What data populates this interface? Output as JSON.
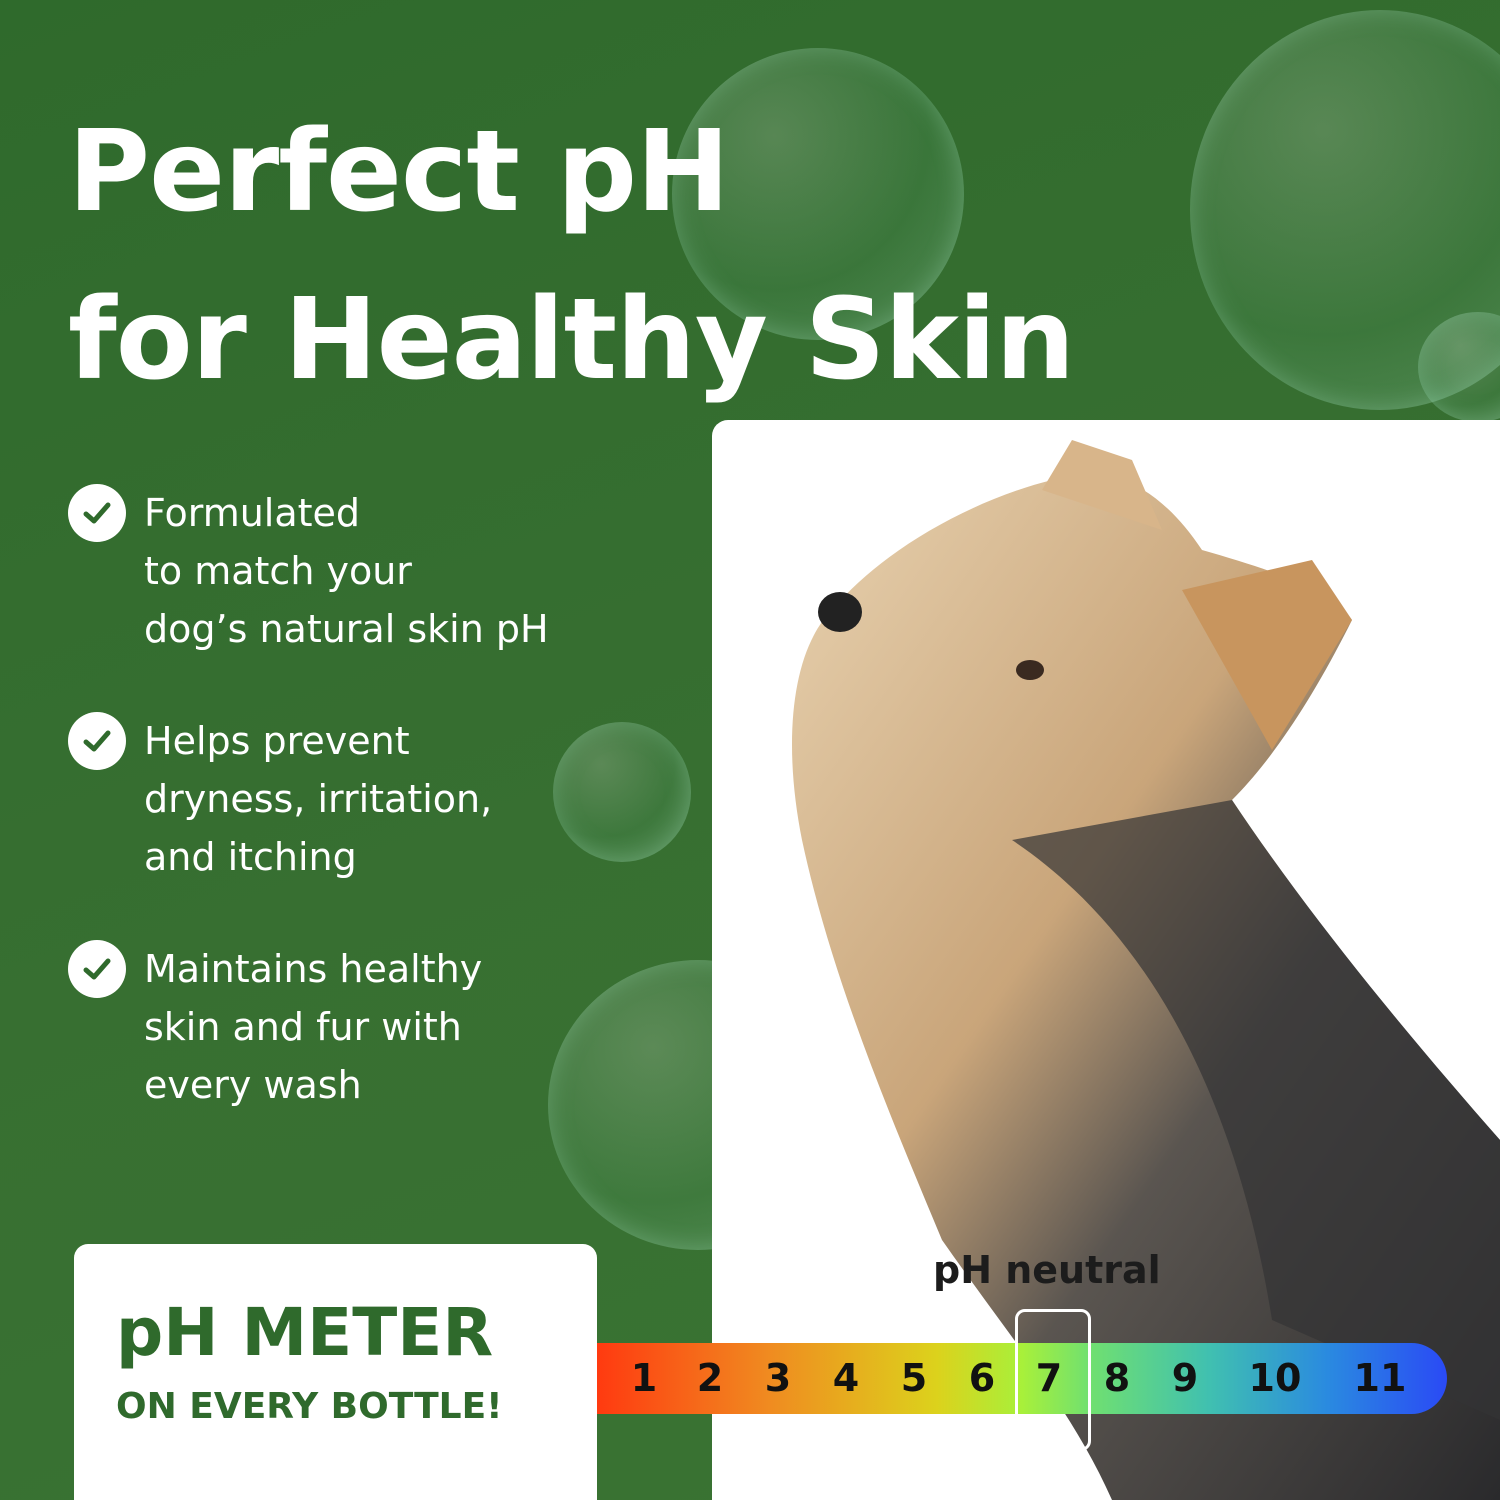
{
  "headline": {
    "line1": "Perfect pH",
    "line2": "for Healthy Skin"
  },
  "benefits": [
    {
      "icon": "check-circle-icon",
      "text": "Formulated\nto match your\ndog’s natural skin pH"
    },
    {
      "icon": "check-circle-icon",
      "text": "Helps prevent\ndryness, irritation,\nand itching"
    },
    {
      "icon": "check-circle-icon",
      "text": "Maintains healthy\nskin and fur with\nevery wash"
    }
  ],
  "meter_card": {
    "title": "pH METER",
    "subtitle": "ON EVERY BOTTLE!"
  },
  "ph_scale": {
    "label": "pH neutral",
    "ticks": [
      "1",
      "2",
      "3",
      "4",
      "5",
      "6",
      "7",
      "8",
      "9",
      "10",
      "11"
    ],
    "highlighted": "7"
  },
  "colors": {
    "brand_green": "#2f6a2c",
    "background": "#376f31"
  }
}
